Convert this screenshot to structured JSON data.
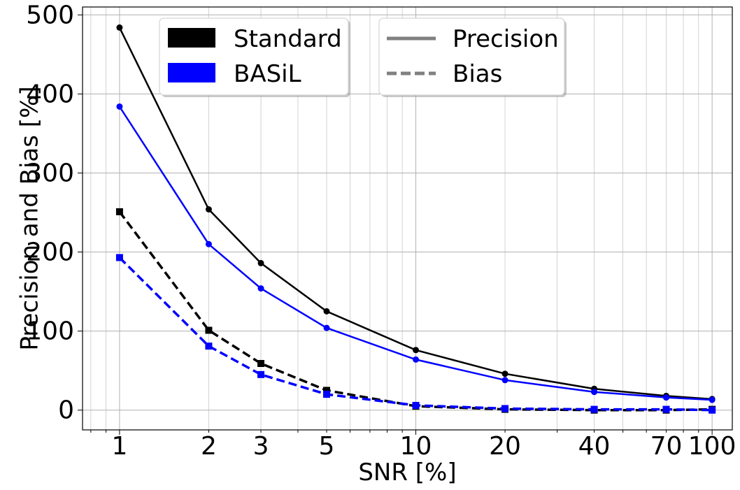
{
  "chart_data": {
    "type": "line",
    "xscale": "log",
    "x": [
      1,
      2,
      3,
      5,
      10,
      20,
      40,
      70,
      100
    ],
    "xtick_labels": [
      "1",
      "2",
      "3",
      "5",
      "10",
      "20",
      "40",
      "70",
      "100"
    ],
    "yticks": [
      0,
      100,
      200,
      300,
      400,
      500
    ],
    "ytick_labels": [
      "0",
      "100",
      "200",
      "300",
      "400",
      "500"
    ],
    "xlim": [
      0.75,
      117
    ],
    "ylim": [
      -25,
      510
    ],
    "xlabel": "SNR [%]",
    "ylabel": "Precision and Bias [%]",
    "grid": true,
    "series": [
      {
        "name": "Standard Precision",
        "method": "Standard",
        "metric": "Precision",
        "color": "#000000",
        "dash": "solid",
        "marker": "circle",
        "values": [
          484,
          254,
          186,
          125,
          76,
          46,
          27,
          18,
          14
        ]
      },
      {
        "name": "BASiL Precision",
        "method": "BASiL",
        "metric": "Precision",
        "color": "#0000ff",
        "dash": "solid",
        "marker": "circle",
        "values": [
          384,
          210,
          154,
          104,
          64,
          38,
          23,
          16,
          13
        ]
      },
      {
        "name": "Standard Bias",
        "method": "Standard",
        "metric": "Bias",
        "color": "#000000",
        "dash": "dashed",
        "marker": "square",
        "values": [
          251,
          101,
          59,
          25,
          5,
          1,
          0,
          0,
          1
        ]
      },
      {
        "name": "BASiL Bias",
        "method": "BASiL",
        "metric": "Bias",
        "color": "#0000ff",
        "dash": "dashed",
        "marker": "square",
        "values": [
          193,
          81,
          45,
          20,
          6,
          2,
          1,
          1,
          0
        ]
      }
    ],
    "legend_method": {
      "position": "top-left",
      "entries": [
        {
          "label": "Standard",
          "color": "#000000"
        },
        {
          "label": "BASiL",
          "color": "#0000ff"
        }
      ]
    },
    "legend_metric": {
      "position": "top-center",
      "entries": [
        {
          "label": "Precision",
          "color": "#808080",
          "dash": "solid"
        },
        {
          "label": "Bias",
          "color": "#808080",
          "dash": "dashed"
        }
      ]
    }
  }
}
